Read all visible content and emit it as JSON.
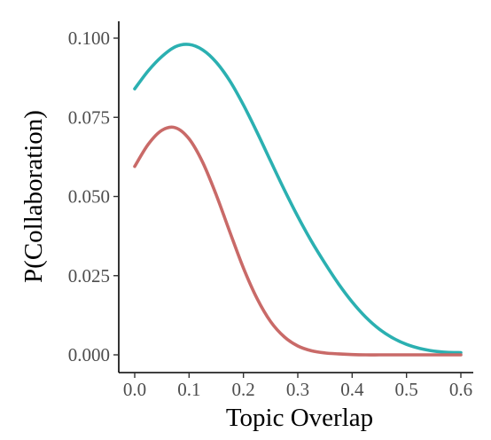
{
  "chart_data": {
    "type": "line",
    "xlabel": "Topic Overlap",
    "ylabel": "P(Collaboration)",
    "xlim": [
      0.0,
      0.6
    ],
    "ylim": [
      0.0,
      0.1
    ],
    "grid": false,
    "legend": "none",
    "x_ticks": [
      "0.0",
      "0.1",
      "0.2",
      "0.3",
      "0.4",
      "0.5",
      "0.6"
    ],
    "y_ticks": [
      "0.000",
      "0.025",
      "0.050",
      "0.075",
      "0.100"
    ],
    "series": [
      {
        "color": "#2bb0b1",
        "x": [
          0.0,
          0.025,
          0.05,
          0.075,
          0.1,
          0.125,
          0.15,
          0.175,
          0.2,
          0.225,
          0.25,
          0.275,
          0.3,
          0.325,
          0.35,
          0.375,
          0.4,
          0.425,
          0.45,
          0.475,
          0.5,
          0.525,
          0.55,
          0.575,
          0.6
        ],
        "y": [
          0.084,
          0.0897,
          0.0942,
          0.0973,
          0.098,
          0.0963,
          0.0924,
          0.0865,
          0.0789,
          0.0703,
          0.0612,
          0.0522,
          0.0437,
          0.0359,
          0.0289,
          0.0224,
          0.0167,
          0.0119,
          0.0081,
          0.0053,
          0.0033,
          0.002,
          0.0012,
          0.0008,
          0.0007
        ]
      },
      {
        "color": "#c96a68",
        "x": [
          0.0,
          0.025,
          0.05,
          0.075,
          0.1,
          0.125,
          0.15,
          0.175,
          0.2,
          0.225,
          0.25,
          0.275,
          0.3,
          0.325,
          0.35,
          0.375,
          0.4,
          0.425,
          0.45,
          0.475,
          0.5,
          0.525,
          0.55,
          0.575,
          0.6
        ],
        "y": [
          0.0595,
          0.0665,
          0.0709,
          0.0717,
          0.0682,
          0.0608,
          0.0505,
          0.0388,
          0.0274,
          0.0178,
          0.0105,
          0.0057,
          0.0028,
          0.0013,
          0.0006,
          0.0003,
          0.0001,
          0.0,
          0.0,
          0.0,
          0.0,
          0.0,
          0.0,
          0.0,
          0.0
        ]
      }
    ]
  }
}
